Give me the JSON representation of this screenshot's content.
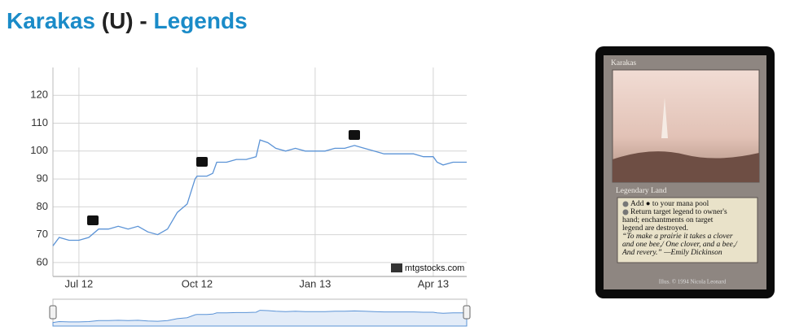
{
  "header": {
    "card_name": "Karakas",
    "rarity": "(U)",
    "separator": "-",
    "set_name": "Legends"
  },
  "chart_data": {
    "type": "line",
    "credit": "mtgstocks.com",
    "x": [
      -0.66,
      -0.5,
      -0.25,
      0,
      0.25,
      0.5,
      0.75,
      1,
      1.25,
      1.5,
      1.75,
      2,
      2.25,
      2.5,
      2.75,
      2.95,
      3,
      3.25,
      3.4,
      3.5,
      3.75,
      4,
      4.25,
      4.5,
      4.6,
      4.8,
      5,
      5.25,
      5.5,
      5.75,
      6,
      6.25,
      6.5,
      6.75,
      7,
      7.25,
      7.5,
      7.75,
      8,
      8.25,
      8.5,
      8.75,
      9,
      9.1,
      9.25,
      9.5,
      9.75,
      9.85
    ],
    "series": [
      {
        "color": "#5b93d6",
        "values": [
          66,
          69,
          68,
          68,
          69,
          72,
          72,
          73,
          72,
          73,
          71,
          70,
          72,
          78,
          81,
          90,
          91,
          91,
          92,
          96,
          96,
          97,
          97,
          98,
          104,
          103,
          101,
          100,
          101,
          100,
          100,
          100,
          101,
          101,
          102,
          101,
          100,
          99,
          99,
          99,
          99,
          98,
          98,
          96,
          95,
          96,
          96,
          96
        ]
      }
    ],
    "xlim": [
      -0.66,
      9.85
    ],
    "xticks": [
      {
        "value": 0,
        "label": "Jul 12"
      },
      {
        "value": 3,
        "label": "Oct 12"
      },
      {
        "value": 6,
        "label": "Jan 13"
      },
      {
        "value": 9,
        "label": "Apr 13"
      }
    ],
    "ylim": [
      55,
      130
    ],
    "yticks": [
      60,
      70,
      80,
      90,
      100,
      110,
      120
    ],
    "grid": true
  },
  "card": {
    "name": "Karakas",
    "type_line": "Legendary Land",
    "rules": [
      "Add ● to your mana pool",
      "Return target legend to owner's",
      "hand; enchantments on target",
      "legend are destroyed."
    ],
    "flavor": [
      "“To make a prairie it takes a clover",
      "and one bee,/ One clover, and a bee,/",
      "And revery.” —Emily Dickinson"
    ],
    "artist": "Illus. © 1994 Nicola Leonard"
  }
}
